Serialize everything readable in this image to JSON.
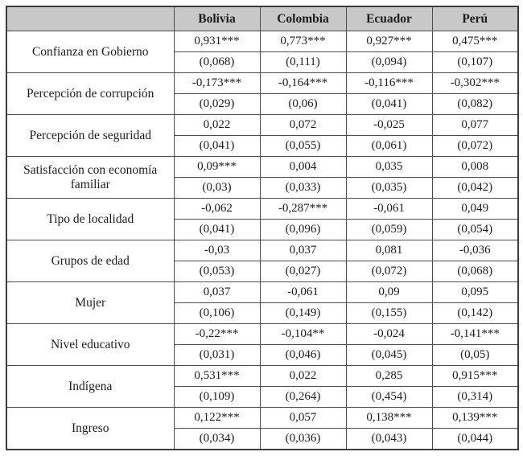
{
  "table": {
    "corner_label": "",
    "columns": [
      "Bolivia",
      "Colombia",
      "Ecuador",
      "Perú"
    ],
    "rows": [
      {
        "label": "Confianza en Gobierno",
        "coefficients": [
          "0,931***",
          "0,773***",
          "0,927***",
          "0,475***"
        ],
        "std_errors": [
          "(0,068)",
          "(0,111)",
          "(0,094)",
          "(0,107)"
        ]
      },
      {
        "label": "Percepción de corrupción",
        "coefficients": [
          "-0,173***",
          "-0,164***",
          "-0,116***",
          "-0,302***"
        ],
        "std_errors": [
          "(0,029)",
          "(0,06)",
          "(0,041)",
          "(0,082)"
        ]
      },
      {
        "label": "Percepción de seguridad",
        "coefficients": [
          "0,022",
          "0,072",
          "-0,025",
          "0,077"
        ],
        "std_errors": [
          "(0,041)",
          "(0,055)",
          "(0,061)",
          "(0,072)"
        ]
      },
      {
        "label": "Satisfacción con economía familiar",
        "coefficients": [
          "0,09***",
          "0,004",
          "0,035",
          "0,008"
        ],
        "std_errors": [
          "(0,03)",
          "(0,033)",
          "(0,035)",
          "(0,042)"
        ]
      },
      {
        "label": "Tipo de localidad",
        "coefficients": [
          "-0,062",
          "-0,287***",
          "-0,061",
          "0,049"
        ],
        "std_errors": [
          "(0,041)",
          "(0,096)",
          "(0,059)",
          "(0,054)"
        ]
      },
      {
        "label": "Grupos de edad",
        "coefficients": [
          "-0,03",
          "0,037",
          "0,081",
          "-0,036"
        ],
        "std_errors": [
          "(0,053)",
          "(0,027)",
          "(0,072)",
          "(0,068)"
        ]
      },
      {
        "label": "Mujer",
        "coefficients": [
          "0,037",
          "-0,061",
          "0,09",
          "0,095"
        ],
        "std_errors": [
          "(0,106)",
          "(0,149)",
          "(0,155)",
          "(0,142)"
        ]
      },
      {
        "label": "Nivel educativo",
        "coefficients": [
          "-0,22***",
          "-0,104**",
          "-0,024",
          "-0,141***"
        ],
        "std_errors": [
          "(0,031)",
          "(0,046)",
          "(0,045)",
          "(0,05)"
        ]
      },
      {
        "label": "Indígena",
        "coefficients": [
          "0,531***",
          "0,022",
          "0,285",
          "0,915***"
        ],
        "std_errors": [
          "(0,109)",
          "(0,264)",
          "(0,454)",
          "(0,314)"
        ]
      },
      {
        "label": "Ingreso",
        "coefficients": [
          "0,122***",
          "0,057",
          "0,138***",
          "0,139***"
        ],
        "std_errors": [
          "(0,034)",
          "(0,036)",
          "(0,043)",
          "(0,044)"
        ]
      }
    ],
    "colors": {
      "header_background": "#c8c8c8",
      "border": "#4d4d4d",
      "text": "#1c1c1c"
    }
  }
}
